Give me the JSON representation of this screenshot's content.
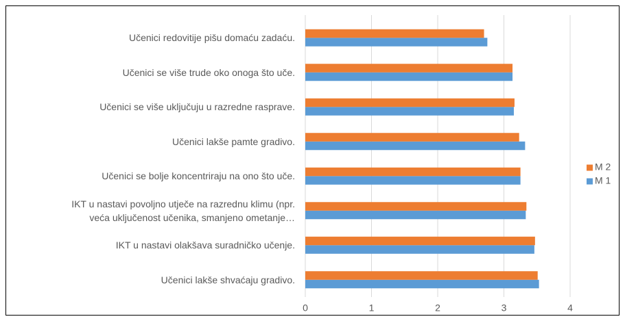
{
  "chart_data": {
    "type": "bar",
    "orientation": "horizontal",
    "categories": [
      "Učenici redovitije pišu domaću zadaću.",
      "Učenici se više trude oko onoga što uče.",
      "Učenici se više uključuju u razredne rasprave.",
      "Učenici lakše pamte gradivo.",
      "Učenici se bolje koncentriraju na ono što uče.",
      "IKT u nastavi povoljno utječe na razrednu klimu (npr.\nveća uključenost učenika, smanjeno ometanje…",
      "IKT u nastavi olakšava suradničko učenje.",
      "Učenici lakše shvaćaju gradivo."
    ],
    "series": [
      {
        "name": "M 1",
        "color": "#5b9bd5",
        "values": [
          2.75,
          3.13,
          3.15,
          3.32,
          3.25,
          3.33,
          3.46,
          3.53
        ]
      },
      {
        "name": "M 2",
        "color": "#ed7d31",
        "values": [
          2.7,
          3.13,
          3.16,
          3.23,
          3.25,
          3.34,
          3.47,
          3.51
        ]
      }
    ],
    "xlim": [
      0,
      4
    ],
    "xticks": [
      0,
      1,
      2,
      3,
      4
    ],
    "grid": true,
    "legend": "right"
  }
}
